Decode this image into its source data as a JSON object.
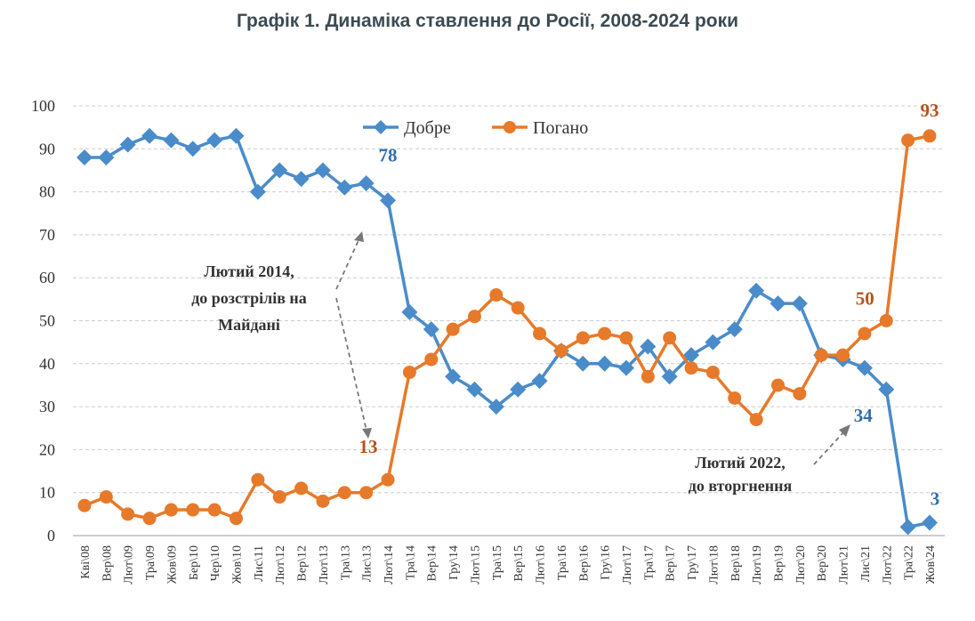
{
  "chart_data": {
    "type": "line",
    "title": "Графік 1. Динаміка ставлення до Росії, 2008-2024 роки",
    "xlabel": "",
    "ylabel": "",
    "ylim": [
      0,
      100
    ],
    "yticks": [
      0,
      10,
      20,
      30,
      40,
      50,
      60,
      70,
      80,
      90,
      100
    ],
    "grid": true,
    "legend_position": "top-center",
    "categories": [
      "Кві\\08",
      "Вер\\08",
      "Лют\\09",
      "Тра\\09",
      "Жов\\09",
      "Бер\\10",
      "Чер\\10",
      "Жов\\10",
      "Лис\\11",
      "Лют\\12",
      "Вер\\12",
      "Лют\\13",
      "Тра\\13",
      "Лис\\13",
      "Лют\\14",
      "Тра\\14",
      "Вер\\14",
      "Гру\\14",
      "Лют\\15",
      "Тра\\15",
      "Вер\\15",
      "Лют\\16",
      "Тра\\16",
      "Вер\\16",
      "Гру\\16",
      "Лют\\17",
      "Тра\\17",
      "Вер\\17",
      "Гру\\17",
      "Лют\\18",
      "Вер\\18",
      "Лют\\19",
      "Вер\\19",
      "Лют\\20",
      "Вер\\20",
      "Лют\\21",
      "Лис\\21",
      "Лют\\22",
      "Тра\\22",
      "Жов\\24"
    ],
    "series": [
      {
        "name": "Добре",
        "color": "#4a8cca",
        "marker": "diamond",
        "values": [
          88,
          88,
          91,
          93,
          92,
          90,
          92,
          93,
          80,
          85,
          83,
          85,
          81,
          82,
          78,
          52,
          48,
          37,
          34,
          30,
          34,
          36,
          43,
          40,
          40,
          39,
          44,
          37,
          42,
          45,
          48,
          57,
          54,
          54,
          42,
          41,
          39,
          34,
          2,
          3
        ]
      },
      {
        "name": "Погано",
        "color": "#e67a2a",
        "marker": "circle",
        "values": [
          7,
          9,
          5,
          4,
          6,
          6,
          6,
          4,
          13,
          9,
          11,
          8,
          10,
          10,
          13,
          38,
          41,
          48,
          51,
          56,
          53,
          47,
          43,
          46,
          47,
          46,
          37,
          46,
          39,
          38,
          32,
          27,
          35,
          33,
          42,
          42,
          47,
          50,
          92,
          93
        ]
      }
    ],
    "data_labels": [
      {
        "series": 0,
        "index": 14,
        "text": "78"
      },
      {
        "series": 1,
        "index": 14,
        "text": "13"
      },
      {
        "series": 1,
        "index": 37,
        "text": "50"
      },
      {
        "series": 1,
        "index": 39,
        "text": "93"
      },
      {
        "series": 0,
        "index": 37,
        "text": "34"
      },
      {
        "series": 0,
        "index": 39,
        "text": "3"
      }
    ],
    "annotations": [
      {
        "lines": [
          "Лютий 2014,",
          "до розстрілів на",
          "Майдані"
        ]
      },
      {
        "lines": [
          "Лютий 2022,",
          "до вторгнення"
        ]
      }
    ]
  }
}
